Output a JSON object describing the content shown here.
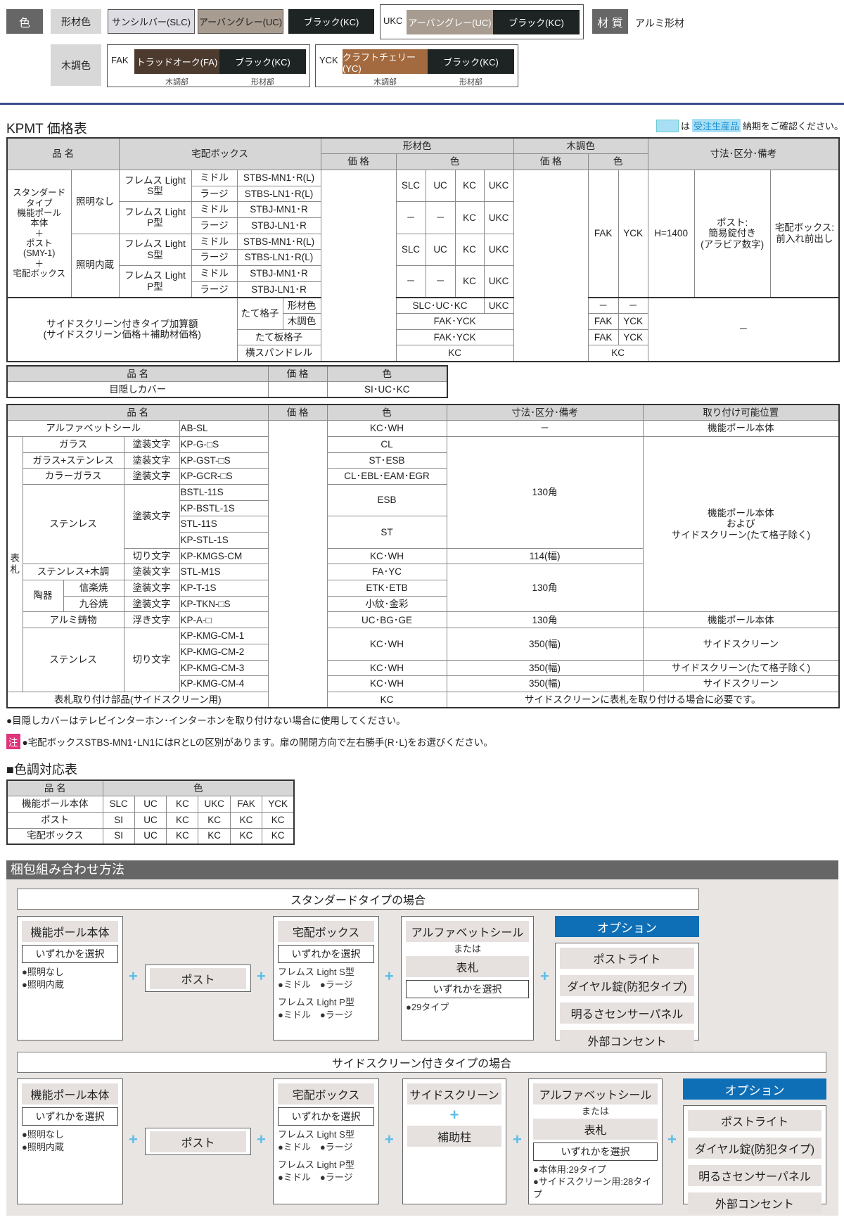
{
  "colors": {
    "label": "色",
    "profile_label": "形材色",
    "wood_label": "木調色",
    "material_label": "材 質",
    "material_value": "アルミ形材",
    "swatches": {
      "slc": {
        "name": "サンシルバー(SLC)",
        "color": "#dcdce2"
      },
      "uc": {
        "name": "アーバングレー(UC)",
        "color": "#a89c90"
      },
      "kc": {
        "name": "ブラック(KC)",
        "color": "#1d2423"
      },
      "ukc_code": "UKC",
      "ukc_uc": "アーバングレー(UC)",
      "ukc_kc": "ブラック(KC)",
      "fak_code": "FAK",
      "fak_wood": {
        "name": "トラッドオーク(FA)",
        "color": "#4b3a2d"
      },
      "fak_kc": "ブラック(KC)",
      "yck_code": "YCK",
      "yck_wood": {
        "name": "クラフトチェリー(YC)",
        "color": "#a36a3f"
      },
      "yck_kc": "ブラック(KC)",
      "wood_part": "木調部",
      "profile_part": "形材部"
    }
  },
  "price_table_title": "KPMT 価格表",
  "legend": {
    "pre": "は",
    "highlight": "受注生産品",
    "post": "納期をご確認ください。",
    "color": "#a8dff5"
  },
  "t1": {
    "head": [
      "品 名",
      "宅配ボックス",
      "形材色",
      "木調色",
      "寸法･区分･備考",
      "価 格",
      "色",
      "価 格",
      "色"
    ],
    "rows": [
      [
        "スタンダード\nタイプ\n機能ポール\n本体\n＋\nポスト\n(SMY-1)\n＋\n宅配ボックス",
        "照明なし",
        "フレムス Light\nS型",
        "ミドル",
        "STBS-MN1･R(L)",
        "SLC",
        "UC",
        "KC",
        "UKC",
        "FAK",
        "YCK",
        "H=1400",
        "ポスト:\n簡易錠付き\n(アラビア数字)",
        "宅配ボックス:\n前入れ前出し"
      ],
      [
        "ラージ",
        "STBS-LN1･R(L)"
      ],
      [
        "フレムス Light\nP型",
        "ミドル",
        "STBJ-MN1･R",
        "－",
        "－",
        "KC",
        "UKC"
      ],
      [
        "ラージ",
        "STBJ-LN1･R"
      ],
      [
        "照明内蔵",
        "フレムス Light\nS型",
        "ミドル",
        "STBS-MN1･R(L)",
        "SLC",
        "UC",
        "KC",
        "UKC"
      ],
      [
        "ラージ",
        "STBS-LN1･R(L)"
      ],
      [
        "フレムス Light\nP型",
        "ミドル",
        "STBJ-MN1･R",
        "－",
        "－",
        "KC",
        "UKC"
      ],
      [
        "ラージ",
        "STBJ-LN1･R"
      ],
      [
        "サイドスクリーン付きタイプ加算額\n(サイドスクリーン価格＋補助材価格)",
        "たて格子",
        "形材色",
        "SLC･UC･KC",
        "UKC",
        "－",
        "－",
        "－"
      ],
      [
        "木調色",
        "FAK･YCK",
        "FAK",
        "YCK"
      ],
      [
        "たて板格子",
        "FAK･YCK",
        "FAK",
        "YCK"
      ],
      [
        "横スパンドレル",
        "KC",
        "KC"
      ]
    ]
  },
  "t2": {
    "head": [
      "品 名",
      "価 格",
      "色"
    ],
    "row": [
      "目隠しカバー",
      "SI･UC･KC"
    ]
  },
  "t3": {
    "head": [
      "品 名",
      "価 格",
      "色",
      "寸法･区分･備考",
      "取り付け可能位置"
    ],
    "rows": [
      [
        "アルファベットシール",
        "AB-SL",
        "KC･WH",
        "－",
        "機能ポール本体"
      ],
      [
        "表\n札",
        "ガラス",
        "塗装文字",
        "KP-G-□S",
        "CL",
        "130角",
        "機能ポール本体\nおよび\nサイドスクリーン(たて格子除く)"
      ],
      [
        "ガラス+ステンレス",
        "塗装文字",
        "KP-GST-□S",
        "ST･ESB"
      ],
      [
        "カラーガラス",
        "塗装文字",
        "KP-GCR-□S",
        "CL･EBL･EAM･EGR"
      ],
      [
        "ステンレス",
        "塗装文字",
        "BSTL-11S",
        "ESB"
      ],
      [
        "KP-BSTL-1S"
      ],
      [
        "STL-11S",
        "ST"
      ],
      [
        "KP-STL-1S"
      ],
      [
        "切り文字",
        "KP-KMGS-CM",
        "KC･WH",
        "114(幅)"
      ],
      [
        "ステンレス+木調",
        "塗装文字",
        "STL-M1S",
        "FA･YC",
        "130角"
      ],
      [
        "陶器",
        "信楽焼",
        "塗装文字",
        "KP-T-1S",
        "ETK･ETB"
      ],
      [
        "九谷焼",
        "塗装文字",
        "KP-TKN-□S",
        "小紋･金彩"
      ],
      [
        "アルミ鋳物",
        "浮き文字",
        "KP-A-□",
        "UC･BG･GE",
        "130角",
        "機能ポール本体"
      ],
      [
        "ステンレス",
        "切り文字",
        "KP-KMG-CM-1",
        "KC･WH",
        "350(幅)",
        "サイドスクリーン"
      ],
      [
        "KP-KMG-CM-2"
      ],
      [
        "KP-KMG-CM-3",
        "KC･WH",
        "350(幅)",
        "サイドスクリーン(たて格子除く)"
      ],
      [
        "KP-KMG-CM-4",
        "KC･WH",
        "350(幅)",
        "サイドスクリーン"
      ],
      [
        "表札取り付け部品(サイドスクリーン用)",
        "KC",
        "サイドスクリーンに表札を取り付ける場合に必要です。"
      ]
    ]
  },
  "notes": {
    "note1": "●目隠しカバーはテレビインターホン･インターホンを取り付けない場合に使用してください。",
    "caution_mark": "注",
    "note2": "●宅配ボックスSTBS-MN1･LN1にはRとLの区別があります。扉の開閉方向で左右勝手(R･L)をお選びください。"
  },
  "t4": {
    "title": "■色調対応表",
    "head": [
      "品 名",
      "色"
    ],
    "rows": [
      [
        "機能ポール本体",
        "SLC",
        "UC",
        "KC",
        "UKC",
        "FAK",
        "YCK"
      ],
      [
        "ポスト",
        "SI",
        "UC",
        "KC",
        "KC",
        "KC",
        "KC"
      ],
      [
        "宅配ボックス",
        "SI",
        "UC",
        "KC",
        "KC",
        "KC",
        "KC"
      ]
    ]
  },
  "packing": {
    "title": "梱包組み合わせ方法",
    "standard": {
      "banner": "スタンダードタイプの場合",
      "pole": {
        "title": "機能ポール本体",
        "select": "いずれかを選択",
        "items": [
          "●照明なし",
          "●照明内蔵"
        ]
      },
      "post": "ポスト",
      "box": {
        "title": "宅配ボックス",
        "select": "いずれかを選択",
        "s_type": "フレムス Light S型",
        "s_sizes": "●ミドル　●ラージ",
        "p_type": "フレムス Light P型",
        "p_sizes": "●ミドル　●ラージ"
      },
      "alpha": {
        "title": "アルファベットシール",
        "or": "または",
        "nameplate": "表札",
        "select": "いずれかを選択",
        "items": [
          "●29タイプ"
        ]
      },
      "option": {
        "title": "オプション",
        "items": [
          "ポストライト",
          "ダイヤル錠(防犯タイプ)",
          "明るさセンサーパネル",
          "外部コンセント"
        ]
      }
    },
    "side": {
      "banner": "サイドスクリーン付きタイプの場合",
      "pole": {
        "title": "機能ポール本体",
        "select": "いずれかを選択",
        "items": [
          "●照明なし",
          "●照明内蔵"
        ]
      },
      "post": "ポスト",
      "box": {
        "title": "宅配ボックス",
        "select": "いずれかを選択",
        "s_type": "フレムス Light S型",
        "s_sizes": "●ミドル　●ラージ",
        "p_type": "フレムス Light P型",
        "p_sizes": "●ミドル　●ラージ"
      },
      "screen": {
        "title": "サイドスクリーン",
        "plus": "+",
        "sub": "補助柱"
      },
      "alpha": {
        "title": "アルファベットシール",
        "or": "または",
        "nameplate": "表札",
        "select": "いずれかを選択",
        "items": [
          "●本体用:29タイプ",
          "●サイドスクリーン用:28タイプ"
        ]
      },
      "option": {
        "title": "オプション",
        "items": [
          "ポストライト",
          "ダイヤル錠(防犯タイプ)",
          "明るさセンサーパネル",
          "外部コンセント"
        ]
      }
    },
    "plus_sign": "+"
  }
}
